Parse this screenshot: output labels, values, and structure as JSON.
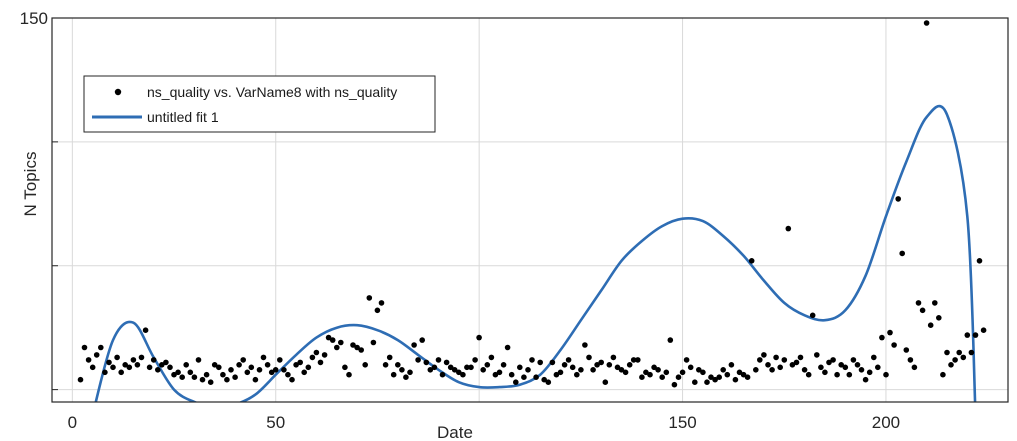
{
  "chart_data": {
    "type": "scatter",
    "title": "",
    "xlabel": "Date",
    "ylabel": "N Topics",
    "xlim": [
      -5,
      230
    ],
    "ylim": [
      -5,
      150
    ],
    "x_ticks": [
      0,
      50,
      150,
      200
    ],
    "x_grid": [
      0,
      50,
      100,
      150,
      200
    ],
    "y_ticks": [
      0,
      50,
      100,
      150
    ],
    "y_tick_labels": [
      "",
      "",
      "",
      "150"
    ],
    "grid": true,
    "legend_position": "top-left",
    "colors": {
      "points": "#000000",
      "fit": "#2e6db4",
      "grid": "#d9d9d9",
      "axes": "#262626"
    },
    "series": [
      {
        "name": "ns_quality vs. VarName8 with ns_quality",
        "kind": "scatter",
        "x": [
          2,
          3,
          4,
          5,
          6,
          7,
          8,
          9,
          10,
          11,
          12,
          13,
          14,
          15,
          16,
          17,
          18,
          19,
          20,
          21,
          22,
          23,
          24,
          25,
          26,
          27,
          28,
          29,
          30,
          31,
          32,
          33,
          34,
          35,
          36,
          37,
          38,
          39,
          40,
          41,
          42,
          43,
          44,
          45,
          46,
          47,
          48,
          49,
          50,
          51,
          52,
          53,
          54,
          55,
          56,
          57,
          58,
          59,
          60,
          61,
          62,
          63,
          64,
          65,
          66,
          67,
          68,
          69,
          70,
          71,
          72,
          73,
          74,
          75,
          76,
          77,
          78,
          79,
          80,
          81,
          82,
          83,
          84,
          85,
          86,
          87,
          88,
          89,
          90,
          91,
          92,
          93,
          94,
          95,
          96,
          97,
          98,
          99,
          100,
          101,
          102,
          103,
          104,
          105,
          106,
          107,
          108,
          109,
          110,
          111,
          112,
          113,
          114,
          115,
          116,
          117,
          118,
          119,
          120,
          121,
          122,
          123,
          124,
          125,
          126,
          127,
          128,
          129,
          130,
          131,
          132,
          133,
          134,
          135,
          136,
          137,
          138,
          139,
          140,
          141,
          142,
          143,
          144,
          145,
          146,
          147,
          148,
          149,
          150,
          151,
          152,
          153,
          154,
          155,
          156,
          157,
          158,
          159,
          160,
          161,
          162,
          163,
          164,
          165,
          166,
          167,
          168,
          169,
          170,
          171,
          172,
          173,
          174,
          175,
          176,
          177,
          178,
          179,
          180,
          181,
          182,
          183,
          184,
          185,
          186,
          187,
          188,
          189,
          190,
          191,
          192,
          193,
          194,
          195,
          196,
          197,
          198,
          199,
          200,
          201,
          202,
          203,
          204,
          205,
          206,
          207,
          208,
          209,
          210,
          211,
          212,
          213,
          214,
          215,
          216,
          217,
          218,
          219,
          220,
          221,
          222,
          223,
          224
        ],
        "y": [
          4,
          17,
          12,
          9,
          14,
          17,
          7,
          11,
          9,
          13,
          7,
          10,
          9,
          12,
          10,
          13,
          24,
          9,
          12,
          8,
          10,
          11,
          9,
          6,
          7,
          5,
          10,
          7,
          5,
          12,
          4,
          6,
          3,
          10,
          9,
          6,
          4,
          8,
          5,
          10,
          12,
          7,
          9,
          4,
          8,
          13,
          10,
          7,
          8,
          12,
          8,
          6,
          4,
          10,
          11,
          7,
          9,
          13,
          15,
          11,
          14,
          21,
          20,
          17,
          19,
          9,
          6,
          18,
          17,
          16,
          10,
          37,
          19,
          32,
          35,
          10,
          13,
          6,
          10,
          8,
          5,
          7,
          18,
          12,
          20,
          11,
          8,
          9,
          12,
          6,
          11,
          9,
          8,
          7,
          6,
          9,
          9,
          12,
          21,
          8,
          10,
          13,
          6,
          7,
          10,
          17,
          6,
          3,
          9,
          5,
          8,
          12,
          5,
          11,
          4,
          3,
          11,
          6,
          7,
          10,
          12,
          9,
          6,
          8,
          18,
          13,
          8,
          10,
          11,
          3,
          10,
          13,
          9,
          8,
          7,
          10,
          12,
          12,
          5,
          7,
          6,
          9,
          8,
          5,
          7,
          20,
          2,
          5,
          7,
          12,
          9,
          3,
          8,
          7,
          3,
          5,
          4,
          5,
          8,
          6,
          10,
          4,
          7,
          6,
          5,
          52,
          8,
          12,
          14,
          10,
          8,
          13,
          9,
          12,
          65,
          10,
          11,
          13,
          8,
          6,
          30,
          14,
          9,
          7,
          11,
          12,
          6,
          10,
          9,
          6,
          12,
          10,
          8,
          4,
          7,
          13,
          9,
          21,
          6,
          23,
          18,
          77,
          55,
          16,
          12,
          9,
          35,
          32,
          148,
          26,
          35,
          29,
          6,
          15,
          10,
          12,
          15,
          13,
          22,
          15,
          22,
          52,
          24
        ],
        "color": "#000000"
      },
      {
        "name": "untitled fit 1",
        "kind": "line",
        "x": [
          5,
          10,
          15,
          20,
          25,
          30,
          35,
          40,
          45,
          50,
          55,
          60,
          65,
          70,
          75,
          80,
          85,
          90,
          95,
          100,
          105,
          110,
          115,
          120,
          125,
          130,
          135,
          140,
          145,
          150,
          155,
          160,
          165,
          170,
          175,
          180,
          185,
          190,
          195,
          200,
          205,
          210,
          215,
          220,
          222
        ],
        "y": [
          -10,
          20,
          27,
          13,
          0,
          -5,
          -7,
          -6,
          -2,
          6,
          14,
          21,
          25,
          26,
          24,
          20,
          14,
          8,
          3,
          1,
          1,
          2,
          6,
          16,
          28,
          40,
          52,
          60,
          66,
          69,
          68,
          62,
          54,
          44,
          35,
          30,
          28,
          32,
          46,
          70,
          92,
          110,
          111,
          70,
          -10
        ],
        "color": "#2e6db4"
      }
    ]
  }
}
